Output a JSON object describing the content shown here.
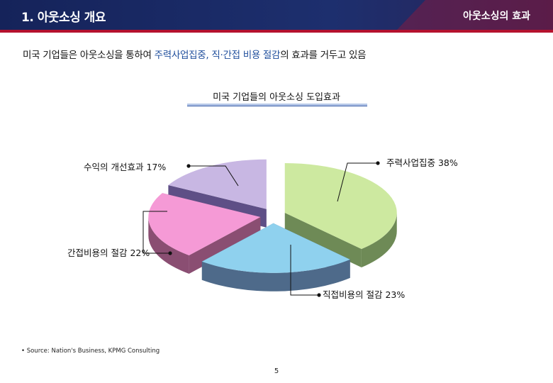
{
  "header": {
    "section_title": "1. 아웃소싱 개요",
    "section_right": "아웃소싱의 효과",
    "colors": {
      "navy": "#15235a",
      "red": "#b5122e"
    }
  },
  "subtitle": {
    "part1": "미국 기업들은 아웃소싱을 통하여 ",
    "highlight": "주력사업집중, 직·간접 비용 절감",
    "part2": "의 효과를 거두고 있음"
  },
  "chart_data": {
    "type": "pie",
    "title": "미국 기업들의 아웃소싱 도입효과",
    "slices": [
      {
        "label": "주력사업집중 38%",
        "value": 38,
        "color": "#cde9a0",
        "side": "#6e8a56"
      },
      {
        "label": "직접비용의 절감 23%",
        "value": 23,
        "color": "#8fd1ee",
        "side": "#4e6a8a"
      },
      {
        "label": "간접비용의 절감 22%",
        "value": 22,
        "color": "#f59ad6",
        "side": "#8a4e72"
      },
      {
        "label": "수익의 개선효과 17%",
        "value": 17,
        "color": "#c8b7e3",
        "side": "#5e4f86"
      }
    ]
  },
  "footer": {
    "source": "• Source: Nation's Business, KPMG Consulting",
    "page": "5"
  }
}
